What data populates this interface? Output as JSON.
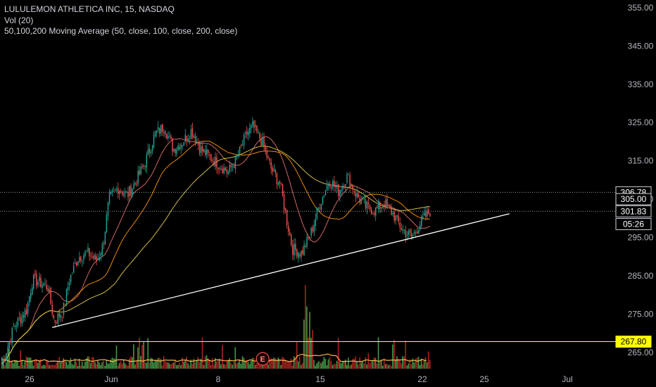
{
  "legend": {
    "title": "LULULEMON ATHLETICA INC, 15, NASDAQ",
    "volume": "Vol (20)",
    "moving_average": "50,100,200 Moving Average (50, close, 100, close, 200, close)"
  },
  "colors": {
    "background": "#000000",
    "up": "#26a69a",
    "down": "#ef5350",
    "volume_up": "#4caf50",
    "volume_down": "#c62828",
    "ma50": "#e57373",
    "ma100": "#ff9800",
    "ma200": "#e6d14b",
    "trendline": "#ffffff",
    "highlight_label": "#ffff00"
  },
  "chart_data": {
    "type": "candlestick",
    "x_tick_labels": [
      "26",
      "Jun",
      "8",
      "15",
      "22",
      "25",
      "Jul"
    ],
    "y_tick_labels": [
      355,
      345,
      335,
      325,
      315,
      305,
      295,
      285,
      275,
      265
    ],
    "ylim": [
      260,
      357
    ],
    "price_labels": [
      {
        "label": "306.78",
        "value": 306.78,
        "style": "white",
        "dotted_line": true
      },
      {
        "label": "305.00",
        "value": 305.0,
        "style": "white",
        "dotted_line": false
      },
      {
        "label": "301.83",
        "value": 301.83,
        "style": "white",
        "dotted_line": true
      },
      {
        "label": "05:26",
        "value": 298.5,
        "style": "white",
        "dotted_line": false
      },
      {
        "label": "267.80",
        "value": 267.8,
        "style": "yellow",
        "dotted_line": true
      }
    ],
    "trendline": {
      "from": [
        0.085,
        271.5
      ],
      "to": [
        0.83,
        301.2
      ]
    },
    "earnings_marker": {
      "label": "E",
      "x": 0.428
    },
    "price_path": [
      [
        0.0,
        262
      ],
      [
        0.02,
        272
      ],
      [
        0.04,
        276
      ],
      [
        0.05,
        284
      ],
      [
        0.065,
        283
      ],
      [
        0.075,
        282
      ],
      [
        0.085,
        273
      ],
      [
        0.1,
        276
      ],
      [
        0.11,
        284
      ],
      [
        0.125,
        290
      ],
      [
        0.14,
        291
      ],
      [
        0.155,
        289
      ],
      [
        0.165,
        293
      ],
      [
        0.175,
        305
      ],
      [
        0.19,
        308
      ],
      [
        0.205,
        306
      ],
      [
        0.22,
        310
      ],
      [
        0.235,
        315
      ],
      [
        0.25,
        322
      ],
      [
        0.265,
        324
      ],
      [
        0.28,
        318
      ],
      [
        0.295,
        320
      ],
      [
        0.31,
        323
      ],
      [
        0.325,
        318
      ],
      [
        0.34,
        316
      ],
      [
        0.355,
        314
      ],
      [
        0.37,
        312
      ],
      [
        0.385,
        316
      ],
      [
        0.4,
        322
      ],
      [
        0.41,
        324
      ],
      [
        0.425,
        320
      ],
      [
        0.44,
        313
      ],
      [
        0.455,
        309
      ],
      [
        0.465,
        300
      ],
      [
        0.475,
        292
      ],
      [
        0.49,
        291
      ],
      [
        0.505,
        296
      ],
      [
        0.52,
        304
      ],
      [
        0.535,
        310
      ],
      [
        0.55,
        307
      ],
      [
        0.565,
        311
      ],
      [
        0.58,
        306
      ],
      [
        0.595,
        303
      ],
      [
        0.61,
        302
      ],
      [
        0.625,
        304
      ],
      [
        0.64,
        301
      ],
      [
        0.655,
        297
      ],
      [
        0.67,
        295
      ],
      [
        0.685,
        299
      ],
      [
        0.7,
        301.8
      ]
    ],
    "volume_bars_note": "volume histogram shown at the bottom; values not labeled"
  }
}
